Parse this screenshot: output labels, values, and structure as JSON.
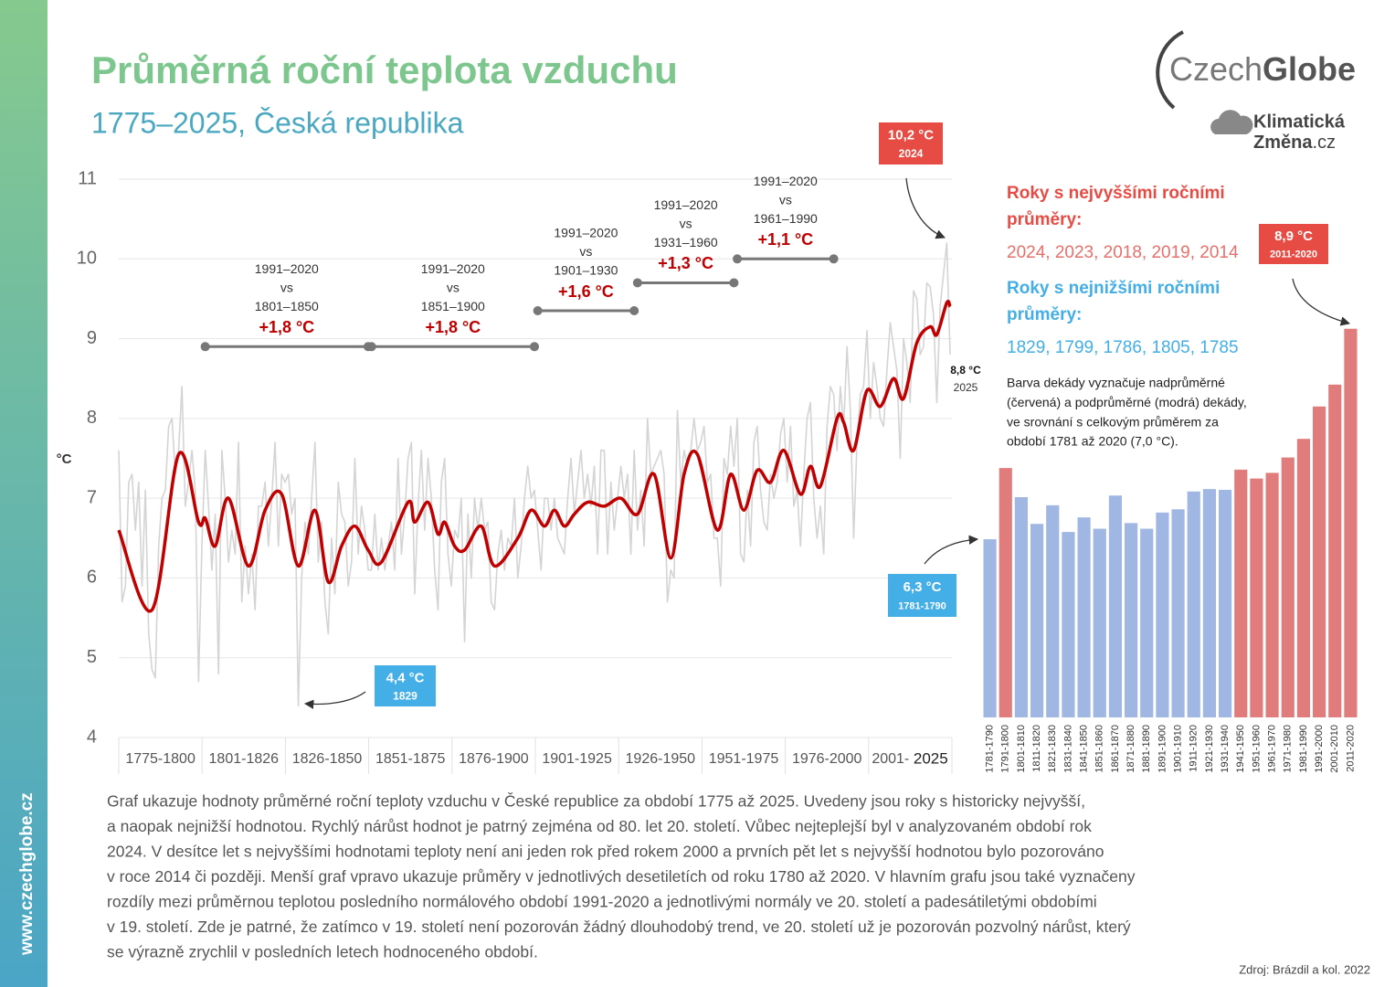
{
  "chart_data": [
    {
      "type": "line",
      "title": "Průměrná roční teplota vzduchu",
      "subtitle": "1775–2025, Česká republika",
      "y_label": "°C",
      "xlim": [
        1775,
        2025
      ],
      "ylim": [
        4,
        11
      ],
      "yticks": [
        4,
        5,
        6,
        7,
        8,
        9,
        10,
        11
      ],
      "grid": true,
      "periods": [
        "1775-1800",
        "1801-1826",
        "1826-1850",
        "1851-1875",
        "1876-1900",
        "1901-1925",
        "1926-1950",
        "1951-1975",
        "1976-2000",
        "2001-"
      ],
      "last_year_label": "2025",
      "x": [
        1775,
        1776,
        1777,
        1778,
        1779,
        1780,
        1781,
        1782,
        1783,
        1784,
        1785,
        1786,
        1787,
        1788,
        1789,
        1790,
        1791,
        1792,
        1793,
        1794,
        1795,
        1796,
        1797,
        1798,
        1799,
        1800,
        1801,
        1802,
        1803,
        1804,
        1805,
        1806,
        1807,
        1808,
        1809,
        1810,
        1811,
        1812,
        1813,
        1814,
        1815,
        1816,
        1817,
        1818,
        1819,
        1820,
        1821,
        1822,
        1823,
        1824,
        1825,
        1826,
        1827,
        1828,
        1829,
        1830,
        1831,
        1832,
        1833,
        1834,
        1835,
        1836,
        1837,
        1838,
        1839,
        1840,
        1841,
        1842,
        1843,
        1844,
        1845,
        1846,
        1847,
        1848,
        1849,
        1850,
        1851,
        1852,
        1853,
        1854,
        1855,
        1856,
        1857,
        1858,
        1859,
        1860,
        1861,
        1862,
        1863,
        1864,
        1865,
        1866,
        1867,
        1868,
        1869,
        1870,
        1871,
        1872,
        1873,
        1874,
        1875,
        1876,
        1877,
        1878,
        1879,
        1880,
        1881,
        1882,
        1883,
        1884,
        1885,
        1886,
        1887,
        1888,
        1889,
        1890,
        1891,
        1892,
        1893,
        1894,
        1895,
        1896,
        1897,
        1898,
        1899,
        1900,
        1901,
        1902,
        1903,
        1904,
        1905,
        1906,
        1907,
        1908,
        1909,
        1910,
        1911,
        1912,
        1913,
        1914,
        1915,
        1916,
        1917,
        1918,
        1919,
        1920,
        1921,
        1922,
        1923,
        1924,
        1925,
        1926,
        1927,
        1928,
        1929,
        1930,
        1931,
        1932,
        1933,
        1934,
        1935,
        1936,
        1937,
        1938,
        1939,
        1940,
        1941,
        1942,
        1943,
        1944,
        1945,
        1946,
        1947,
        1948,
        1949,
        1950,
        1951,
        1952,
        1953,
        1954,
        1955,
        1956,
        1957,
        1958,
        1959,
        1960,
        1961,
        1962,
        1963,
        1964,
        1965,
        1966,
        1967,
        1968,
        1969,
        1970,
        1971,
        1972,
        1973,
        1974,
        1975,
        1976,
        1977,
        1978,
        1979,
        1980,
        1981,
        1982,
        1983,
        1984,
        1985,
        1986,
        1987,
        1988,
        1989,
        1990,
        1991,
        1992,
        1993,
        1994,
        1995,
        1996,
        1997,
        1998,
        1999,
        2000,
        2001,
        2002,
        2003,
        2004,
        2005,
        2006,
        2007,
        2008,
        2009,
        2010,
        2011,
        2012,
        2013,
        2014,
        2015,
        2016,
        2017,
        2018,
        2019,
        2020,
        2021,
        2022,
        2023,
        2024,
        2025
      ],
      "series": [
        {
          "color": "#d4d4d4",
          "values": [
            7.6,
            5.7,
            5.9,
            7.2,
            7.3,
            6.6,
            7.2,
            5.9,
            7.1,
            5.3,
            4.85,
            4.75,
            6.4,
            7.0,
            7.1,
            7.9,
            8.0,
            7.3,
            7.6,
            8.4,
            6.9,
            7.2,
            7.6,
            7.1,
            4.7,
            6.4,
            7.6,
            6.9,
            6.1,
            6.8,
            4.8,
            7.6,
            7.0,
            6.2,
            6.6,
            6.3,
            7.7,
            5.7,
            6.4,
            5.8,
            6.3,
            5.6,
            6.9,
            6.9,
            7.2,
            6.4,
            7.0,
            7.7,
            6.4,
            7.3,
            7.2,
            7.3,
            6.8,
            7.0,
            4.4,
            6.0,
            6.7,
            6.3,
            7.0,
            7.7,
            6.2,
            6.7,
            5.7,
            5.3,
            6.5,
            5.8,
            7.2,
            6.8,
            6.7,
            5.9,
            6.2,
            7.5,
            6.3,
            6.9,
            6.6,
            6.1,
            6.1,
            6.8,
            6.1,
            6.5,
            6.1,
            6.4,
            6.7,
            6.1,
            7.5,
            6.3,
            6.8,
            7.5,
            7.7,
            5.8,
            6.9,
            7.6,
            6.6,
            7.5,
            7.0,
            6.1,
            5.6,
            7.2,
            7.5,
            6.3,
            5.9,
            6.6,
            6.5,
            7.0,
            5.2,
            6.8,
            6.0,
            7.0,
            6.6,
            7.0,
            6.6,
            6.7,
            5.7,
            5.6,
            6.3,
            6.6,
            6.1,
            6.5,
            6.4,
            7.0,
            6.0,
            6.4,
            7.0,
            7.4,
            7.0,
            7.1,
            6.6,
            6.1,
            7.0,
            7.0,
            6.6,
            7.0,
            6.5,
            6.4,
            6.3,
            7.0,
            7.5,
            6.8,
            7.2,
            7.6,
            7.0,
            7.3,
            6.9,
            7.4,
            6.3,
            7.6,
            7.6,
            6.3,
            7.2,
            6.6,
            7.0,
            7.4,
            7.0,
            7.3,
            6.3,
            7.6,
            6.6,
            7.1,
            6.4,
            8.0,
            7.3,
            7.4,
            7.5,
            7.6,
            7.3,
            5.7,
            6.1,
            6.0,
            8.1,
            7.2,
            7.6,
            7.4,
            7.6,
            8.0,
            7.6,
            7.7,
            7.9,
            7.2,
            7.3,
            6.5,
            6.5,
            5.9,
            7.5,
            7.3,
            7.9,
            7.4,
            8.0,
            6.3,
            6.2,
            7.1,
            6.4,
            7.7,
            7.9,
            7.1,
            6.7,
            6.6,
            7.3,
            7.0,
            7.2,
            7.8,
            8.0,
            7.2,
            7.9,
            6.9,
            7.1,
            6.4,
            7.3,
            8.0,
            8.2,
            7.0,
            6.5,
            6.9,
            6.3,
            7.9,
            8.4,
            8.3,
            7.6,
            8.4,
            7.9,
            8.9,
            8.1,
            6.5,
            7.7,
            8.3,
            8.4,
            9.1,
            8.0,
            8.7,
            8.4,
            8.0,
            7.9,
            8.6,
            9.2,
            8.9,
            8.6,
            7.5,
            9.0,
            8.7,
            8.2,
            9.6,
            9.5,
            8.8,
            8.9,
            9.7,
            9.65,
            9.3,
            8.2,
            9.4,
            9.8,
            10.2,
            8.8
          ]
        },
        {
          "color": "#c00000",
          "smooth": true,
          "x": [
            1775,
            1785,
            1793,
            1799,
            1801,
            1804,
            1808,
            1814,
            1819,
            1824,
            1829,
            1834,
            1838,
            1842,
            1846,
            1850,
            1854,
            1862,
            1864,
            1868,
            1871,
            1873,
            1876,
            1879,
            1884,
            1888,
            1895,
            1899,
            1903,
            1906,
            1909,
            1912,
            1916,
            1921,
            1926,
            1931,
            1936,
            1941,
            1945,
            1949,
            1955,
            1959,
            1963,
            1967,
            1971,
            1975,
            1980,
            1983,
            1986,
            1991,
            1993,
            1996,
            2000,
            2004,
            2008,
            2011,
            2015,
            2019,
            2021,
            2024,
            2025
          ],
          "values": [
            6.6,
            5.6,
            7.55,
            6.7,
            6.75,
            6.4,
            7.0,
            6.15,
            6.85,
            7.05,
            6.15,
            6.85,
            5.95,
            6.4,
            6.65,
            6.35,
            6.2,
            6.95,
            6.7,
            6.95,
            6.55,
            6.7,
            6.4,
            6.35,
            6.65,
            6.15,
            6.5,
            6.85,
            6.65,
            6.85,
            6.65,
            6.8,
            6.95,
            6.9,
            7.0,
            6.8,
            7.3,
            6.25,
            7.3,
            7.55,
            6.6,
            7.3,
            6.85,
            7.35,
            7.2,
            7.6,
            7.05,
            7.4,
            7.15,
            8.0,
            7.95,
            7.6,
            8.35,
            8.15,
            8.5,
            8.25,
            8.95,
            9.15,
            9.05,
            9.45,
            9.4
          ]
        }
      ],
      "comparisons": [
        {
          "lines": [
            "1991–2020",
            "vs",
            "1801–1850"
          ],
          "diff": "+1,8 °C",
          "x": [
            1801,
            1850
          ],
          "y": 8.9
        },
        {
          "lines": [
            "1991–2020",
            "vs",
            "1851–1900"
          ],
          "diff": "+1,8 °C",
          "x": [
            1851,
            1900
          ],
          "y": 8.9
        },
        {
          "lines": [
            "1991–2020",
            "vs",
            "1901–1930"
          ],
          "diff": "+1,6 °C",
          "x": [
            1901,
            1930
          ],
          "y": 9.35
        },
        {
          "lines": [
            "1991–2020",
            "vs",
            "1931–1960"
          ],
          "diff": "+1,3 °C",
          "x": [
            1931,
            1960
          ],
          "y": 9.7
        },
        {
          "lines": [
            "1991–2020",
            "vs",
            "1961–1990"
          ],
          "diff": "+1,1 °C",
          "x": [
            1961,
            1990
          ],
          "y": 10.0
        }
      ],
      "max_callout": {
        "value_label": "10,2 °C",
        "year_label": "2024"
      },
      "min_callout": {
        "value_label": "4,4 °C",
        "year_label": "1829"
      },
      "last_callout": {
        "value_label": "8,8 °C",
        "year_label": "2025"
      }
    },
    {
      "type": "bar",
      "categories": [
        "1781-1790",
        "1791-1800",
        "1801-1810",
        "1811-1820",
        "1821-1830",
        "1831-1840",
        "1841-1850",
        "1851-1860",
        "1861-1870",
        "1871-1880",
        "1881-1890",
        "1891-1900",
        "1901-1910",
        "1911-1920",
        "1921-1930",
        "1931-1940",
        "1941-1950",
        "1951-1960",
        "1961-1970",
        "1971-1980",
        "1981-1990",
        "1991-2000",
        "2001-2010",
        "2011-2020"
      ],
      "values": [
        6.3,
        7.18,
        6.82,
        6.49,
        6.72,
        6.39,
        6.57,
        6.43,
        6.84,
        6.5,
        6.43,
        6.63,
        6.67,
        6.89,
        6.92,
        6.91,
        7.16,
        7.05,
        7.12,
        7.31,
        7.54,
        7.94,
        8.21,
        8.9
      ],
      "ylim": [
        4.1,
        9.1
      ],
      "mean": 7.0,
      "colors": {
        "above": "#e07c7c",
        "below": "#9fb7e2"
      },
      "max_callout": {
        "value_label": "8,9 °C",
        "year_label": "2011-2020"
      },
      "min_callout": {
        "value_label": "6,3 °C",
        "year_label": "1781-1790"
      },
      "highest_title": [
        "Roky s nejvyššími ročními",
        "průměry:"
      ],
      "highest_years": "2024, 2023, 2018, 2019, 2014",
      "lowest_title": [
        "Roky s nejnižšími ročními",
        "průměry:"
      ],
      "lowest_years": "1829, 1799, 1786, 1805, 1785",
      "note": [
        "Barva dekády vyznačuje nadprůměrné",
        "(červená) a podprůměrné (modrá) dekády,",
        "ve srovnání s celkovým průměrem za",
        "období 1781 až 2020 (7,0 °C)."
      ]
    }
  ],
  "logo": {
    "part1": "Czech",
    "part2": "Globe",
    "line1": "Klimatická",
    "line2": "Změna",
    "line2_suffix": ".cz"
  },
  "website": "www.czechglobe.cz",
  "description": [
    "Graf ukazuje hodnoty průměrné roční teploty vzduchu v České republice za období 1775 až 2025. Uvedeny jsou roky s historicky nejvyšší,",
    "a naopak nejnižší hodnotou. Rychlý nárůst hodnot je patrný zejména od 80. let 20. století. Vůbec nejteplejší byl v analyzovaném období rok",
    "2024. V desítce let s nejvyššími hodnotami teploty není ani jeden rok před rokem 2000 a prvních pět let s nejvyšší hodnotou bylo pozorováno",
    "v roce 2014 či později. Menší graf vpravo ukazuje průměry v jednotlivých desetiletích od roku 1780 až 2020. V hlavním grafu jsou také vyznačeny",
    "rozdíly mezi průměrnou teplotou posledního normálového období 1991-2020 a jednotlivými normály ve 20. století a padesátiletými obdobími",
    "v 19. století. Zde je patrné, že zatímco v 19. století není pozorován žádný dlouhodobý trend, ve 20. století už je pozorován pozvolný nárůst, který",
    "se výrazně zrychlil v posledních letech hodnoceného období."
  ],
  "source": "Zdroj: Brázdil a kol. 2022"
}
